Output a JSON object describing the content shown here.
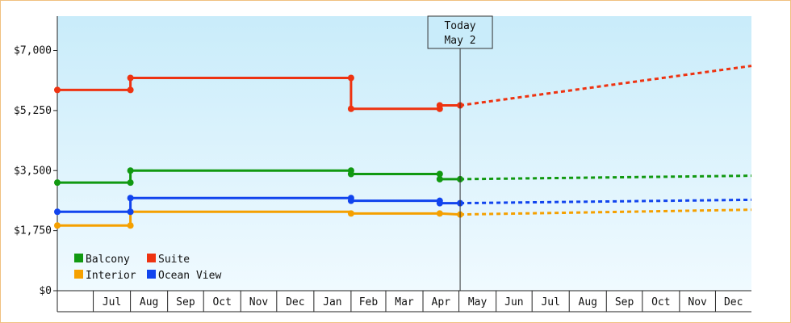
{
  "chart_data": {
    "type": "line",
    "title": "",
    "xlabel": "",
    "ylabel": "",
    "ylim": [
      0,
      8000
    ],
    "y_ticks": [
      {
        "value": 0,
        "label": "$0"
      },
      {
        "value": 1750,
        "label": "$1,750"
      },
      {
        "value": 3500,
        "label": "$3,500"
      },
      {
        "value": 5250,
        "label": "$5,250"
      },
      {
        "value": 7000,
        "label": "$7,000"
      }
    ],
    "months": [
      "Jul",
      "Aug",
      "Sep",
      "Oct",
      "Nov",
      "Dec",
      "Jan",
      "Feb",
      "Mar",
      "Apr",
      "May",
      "Jun",
      "Jul",
      "Aug",
      "Sep",
      "Oct",
      "Nov",
      "Dec"
    ],
    "x_range": [
      "2023-06-01",
      "2024-12-31"
    ],
    "today": {
      "date": "2024-05-02",
      "line1": "Today",
      "line2": "May 2"
    },
    "grid": true,
    "legend": "bottom-left",
    "series": [
      {
        "name": "Balcony",
        "color": "#119911",
        "history": [
          [
            "2023-06-01",
            3150
          ],
          [
            "2023-08-01",
            3150
          ],
          [
            "2023-08-01",
            3500
          ],
          [
            "2024-02-01",
            3500
          ],
          [
            "2024-02-01",
            3400
          ],
          [
            "2024-04-15",
            3400
          ],
          [
            "2024-04-15",
            3250
          ],
          [
            "2024-05-02",
            3250
          ]
        ],
        "markers": [
          [
            "2023-06-01",
            3150
          ],
          [
            "2023-08-01",
            3150
          ],
          [
            "2023-08-01",
            3500
          ],
          [
            "2024-02-01",
            3500
          ],
          [
            "2024-02-01",
            3400
          ],
          [
            "2024-04-15",
            3400
          ],
          [
            "2024-04-15",
            3250
          ],
          [
            "2024-05-02",
            3250
          ]
        ],
        "forecast": [
          [
            "2024-05-02",
            3250
          ],
          [
            "2024-12-31",
            3350
          ]
        ]
      },
      {
        "name": "Suite",
        "color": "#ee3311",
        "history": [
          [
            "2023-06-01",
            5850
          ],
          [
            "2023-08-01",
            5850
          ],
          [
            "2023-08-01",
            6200
          ],
          [
            "2024-02-01",
            6200
          ],
          [
            "2024-02-01",
            5300
          ],
          [
            "2024-04-15",
            5300
          ],
          [
            "2024-04-15",
            5400
          ],
          [
            "2024-05-02",
            5400
          ]
        ],
        "markers": [
          [
            "2023-06-01",
            5850
          ],
          [
            "2023-08-01",
            5850
          ],
          [
            "2023-08-01",
            6200
          ],
          [
            "2024-02-01",
            6200
          ],
          [
            "2024-02-01",
            5300
          ],
          [
            "2024-04-15",
            5300
          ],
          [
            "2024-04-15",
            5400
          ],
          [
            "2024-05-02",
            5400
          ]
        ],
        "forecast": [
          [
            "2024-05-02",
            5400
          ],
          [
            "2024-12-31",
            6550
          ]
        ]
      },
      {
        "name": "Interior",
        "color": "#f5a000",
        "history": [
          [
            "2023-06-01",
            1900
          ],
          [
            "2023-08-01",
            1900
          ],
          [
            "2023-08-01",
            2300
          ],
          [
            "2024-02-01",
            2300
          ],
          [
            "2024-02-01",
            2250
          ],
          [
            "2024-04-15",
            2250
          ],
          [
            "2024-05-02",
            2220
          ]
        ],
        "markers": [
          [
            "2023-06-01",
            1900
          ],
          [
            "2023-08-01",
            1900
          ],
          [
            "2023-08-01",
            2300
          ],
          [
            "2024-02-01",
            2250
          ],
          [
            "2024-04-15",
            2250
          ],
          [
            "2024-05-02",
            2220
          ]
        ],
        "forecast": [
          [
            "2024-05-02",
            2220
          ],
          [
            "2024-12-31",
            2360
          ]
        ]
      },
      {
        "name": "Ocean View",
        "color": "#1144ee",
        "history": [
          [
            "2023-06-01",
            2300
          ],
          [
            "2023-08-01",
            2300
          ],
          [
            "2023-08-01",
            2700
          ],
          [
            "2024-02-01",
            2700
          ],
          [
            "2024-02-01",
            2620
          ],
          [
            "2024-04-15",
            2620
          ],
          [
            "2024-04-15",
            2550
          ],
          [
            "2024-05-02",
            2550
          ]
        ],
        "markers": [
          [
            "2023-06-01",
            2300
          ],
          [
            "2023-08-01",
            2300
          ],
          [
            "2023-08-01",
            2700
          ],
          [
            "2024-02-01",
            2700
          ],
          [
            "2024-02-01",
            2620
          ],
          [
            "2024-04-15",
            2620
          ],
          [
            "2024-04-15",
            2550
          ],
          [
            "2024-05-02",
            2550
          ]
        ],
        "forecast": [
          [
            "2024-05-02",
            2550
          ],
          [
            "2024-12-31",
            2650
          ]
        ]
      }
    ]
  }
}
